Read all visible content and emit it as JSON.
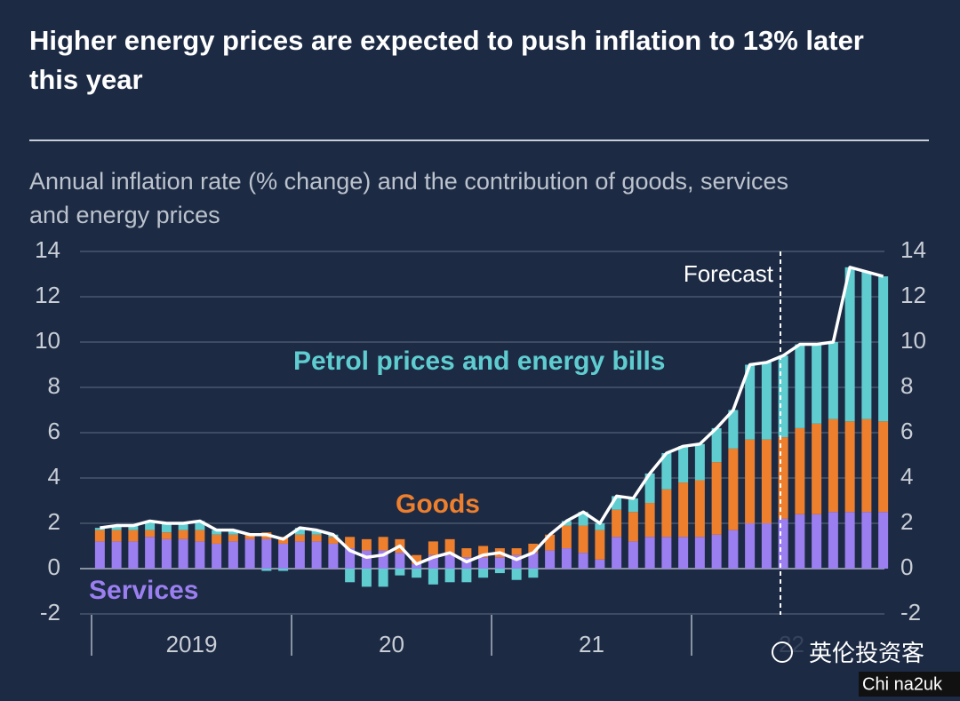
{
  "chart_data": {
    "type": "stacked-bar-line",
    "title": "Higher energy prices are expected to push inflation to 13% later this year",
    "subtitle": "Annual inflation rate (% change) and the contribution of goods, services and energy prices",
    "categories": [
      null,
      null,
      null,
      null,
      null,
      null,
      null,
      null,
      null,
      null,
      null,
      null,
      null,
      null,
      null,
      null,
      null,
      null,
      null,
      null,
      null,
      null,
      null,
      null,
      null,
      null,
      null,
      null,
      null,
      null,
      null,
      null,
      null,
      null,
      null,
      null,
      null,
      null,
      null,
      null,
      null,
      null,
      null,
      null,
      null,
      null,
      null,
      null
    ],
    "year_labels": [
      "2019",
      "20",
      "21",
      "22"
    ],
    "series": [
      {
        "name": "Services",
        "color": "#9b7ff0",
        "values": [
          1.2,
          1.2,
          1.2,
          1.4,
          1.3,
          1.3,
          1.2,
          1.1,
          1.2,
          1.3,
          1.3,
          1.1,
          1.2,
          1.2,
          1.1,
          0.9,
          0.8,
          0.8,
          0.7,
          0.2,
          0.6,
          0.6,
          0.5,
          0.5,
          0.5,
          0.6,
          0.7,
          0.8,
          0.9,
          0.7,
          0.4,
          1.4,
          1.2,
          1.4,
          1.4,
          1.4,
          1.4,
          1.5,
          1.7,
          2.0,
          2.0,
          2.2,
          2.4,
          2.4,
          2.5,
          2.5,
          2.5,
          2.5
        ]
      },
      {
        "name": "Goods",
        "color": "#ee7f2d",
        "values": [
          0.5,
          0.5,
          0.5,
          0.3,
          0.3,
          0.4,
          0.5,
          0.4,
          0.3,
          0.2,
          0.3,
          0.3,
          0.3,
          0.3,
          0.3,
          0.5,
          0.5,
          0.6,
          0.6,
          0.4,
          0.6,
          0.7,
          0.4,
          0.5,
          0.4,
          0.3,
          0.4,
          0.7,
          1.0,
          1.2,
          1.3,
          1.2,
          1.3,
          1.5,
          2.1,
          2.4,
          2.5,
          3.2,
          3.6,
          3.7,
          3.7,
          3.6,
          3.8,
          4.0,
          4.1,
          4.0,
          4.1,
          4.0
        ]
      },
      {
        "name": "Petrol prices and energy bills",
        "color": "#5fcdd0",
        "values": [
          0.1,
          0.2,
          0.2,
          0.4,
          0.4,
          0.3,
          0.4,
          0.2,
          0.2,
          0.0,
          -0.1,
          -0.1,
          0.3,
          0.2,
          0.1,
          -0.6,
          -0.8,
          -0.8,
          -0.3,
          -0.4,
          -0.7,
          -0.6,
          -0.6,
          -0.4,
          -0.2,
          -0.5,
          -0.4,
          0.0,
          0.2,
          0.6,
          0.3,
          0.6,
          0.6,
          1.3,
          1.6,
          1.6,
          1.6,
          1.5,
          1.7,
          3.3,
          3.4,
          3.6,
          3.7,
          3.5,
          3.4,
          6.8,
          6.5,
          6.4
        ]
      }
    ],
    "line": {
      "color": "#ffffff",
      "values": [
        1.8,
        1.9,
        1.9,
        2.1,
        2.0,
        2.0,
        2.1,
        1.7,
        1.7,
        1.5,
        1.5,
        1.3,
        1.8,
        1.7,
        1.5,
        0.8,
        0.5,
        0.6,
        1.0,
        0.2,
        0.5,
        0.7,
        0.3,
        0.6,
        0.7,
        0.4,
        0.7,
        1.5,
        2.1,
        2.5,
        2.0,
        3.2,
        3.1,
        4.2,
        5.1,
        5.4,
        5.5,
        6.2,
        7.0,
        9.0,
        9.1,
        9.4,
        9.9,
        9.9,
        10.0,
        13.3,
        13.1,
        12.9
      ]
    },
    "forecast_label": "Forecast",
    "ylim": [
      -2,
      14
    ],
    "yticks": [
      -2,
      0,
      2,
      4,
      6,
      8,
      10,
      12,
      14
    ],
    "y2lim": [
      -2,
      14
    ],
    "y2ticks": [
      -2,
      0,
      2,
      4,
      6,
      8,
      10,
      12,
      14
    ],
    "grid": true
  },
  "watermark": [
    "英伦投资客",
    "Chi na2uk"
  ]
}
